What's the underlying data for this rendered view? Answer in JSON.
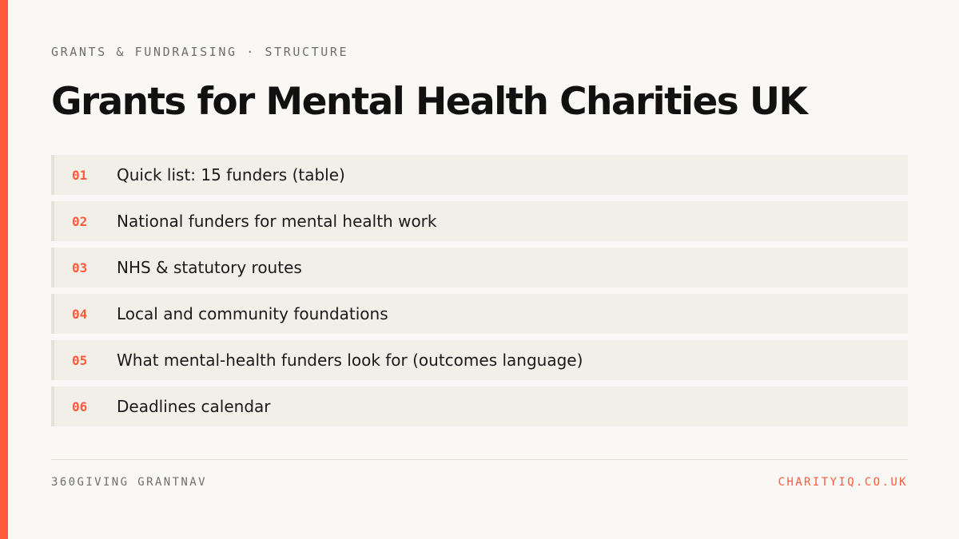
{
  "header": {
    "eyebrow": "GRANTS & FUNDRAISING · STRUCTURE",
    "title": "Grants for Mental Health Charities UK"
  },
  "toc": {
    "items": [
      {
        "number": "01",
        "label": "Quick list: 15 funders (table)"
      },
      {
        "number": "02",
        "label": "National funders for mental health work"
      },
      {
        "number": "03",
        "label": "NHS & statutory routes"
      },
      {
        "number": "04",
        "label": "Local and community foundations"
      },
      {
        "number": "05",
        "label": "What mental-health funders look for (outcomes language)"
      },
      {
        "number": "06",
        "label": "Deadlines calendar"
      }
    ]
  },
  "footer": {
    "source": "360GIVING GRANTNAV",
    "site": "CHARITYIQ.CO.UK"
  },
  "colors": {
    "accent": "#ff5a3c",
    "background": "#f9f8f4",
    "row_background": "#f2efe9",
    "text": "#141414",
    "muted": "#6e6e6e"
  }
}
